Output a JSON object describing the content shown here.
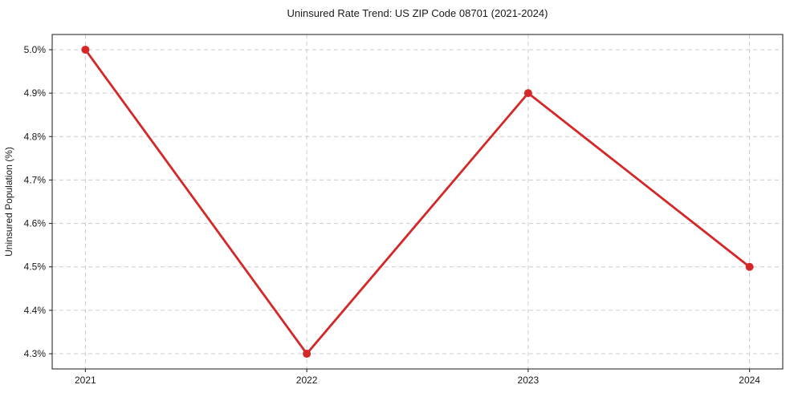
{
  "chart_data": {
    "type": "line",
    "title": "Uninsured Rate Trend: US ZIP Code 08701 (2021-2024)",
    "xlabel": "",
    "ylabel": "Uninsured Population (%)",
    "x": [
      2021,
      2022,
      2023,
      2024
    ],
    "x_tick_labels": [
      "2021",
      "2022",
      "2023",
      "2024"
    ],
    "series": [
      {
        "name": "Uninsured rate",
        "values": [
          5.0,
          4.3,
          4.9,
          4.5
        ],
        "color": "#d62728",
        "marker": "circle",
        "line_width": 2.8,
        "marker_radius": 5
      }
    ],
    "y_ticks": [
      4.3,
      4.4,
      4.5,
      4.6,
      4.7,
      4.8,
      4.9,
      5.0
    ],
    "y_tick_labels": [
      "4.3%",
      "4.4%",
      "4.5%",
      "4.6%",
      "4.7%",
      "4.8%",
      "4.9%",
      "5.0%"
    ],
    "xlim": [
      2020.85,
      2024.15
    ],
    "ylim": [
      4.265,
      5.035
    ],
    "grid": true,
    "grid_style": "dashed",
    "legend": "none",
    "colors": {
      "line": "#d62728",
      "grid": "#cccccc",
      "axis": "#1a1a1a",
      "background": "#ffffff"
    }
  }
}
